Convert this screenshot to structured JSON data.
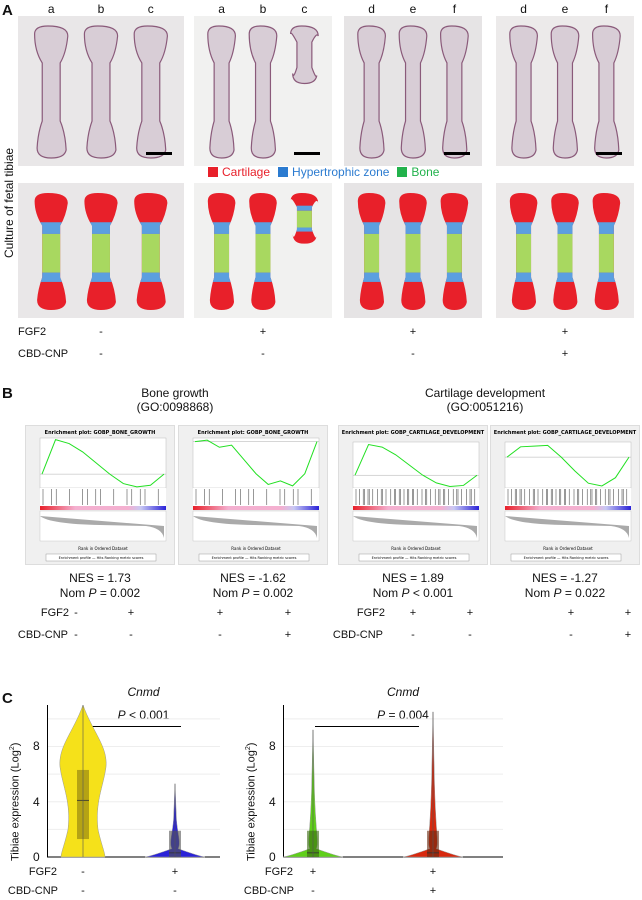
{
  "panel_a": {
    "label": "A",
    "side_label": "Culture of fetal tibiae",
    "groups": [
      {
        "letters": [
          "a",
          "b",
          "c"
        ]
      },
      {
        "letters": [
          "a",
          "b",
          "c"
        ]
      },
      {
        "letters": [
          "d",
          "e",
          "f"
        ]
      },
      {
        "letters": [
          "d",
          "e",
          "f"
        ]
      }
    ],
    "legend": [
      {
        "label": "Cartilage",
        "color": "#e8202a"
      },
      {
        "label": "Hypertrophic zone",
        "color": "#2b7bd0"
      },
      {
        "label": "Bone",
        "color": "#22b24c"
      }
    ],
    "conditions": [
      {
        "name": "FGF2",
        "values": [
          "-",
          "+",
          "+",
          "+"
        ]
      },
      {
        "name": "CBD-CNP",
        "values": [
          "-",
          "-",
          "-",
          "+"
        ]
      }
    ]
  },
  "panel_b": {
    "label": "B",
    "sets": [
      {
        "title": "Bone growth",
        "go": "(GO:0098868)"
      },
      {
        "title": "Cartilage development",
        "go": "(GO:0051216)"
      }
    ],
    "plots": [
      {
        "title": "Enrichment plot: GOBP_BONE_GROWTH",
        "es": [
          0.0,
          0.62,
          0.55,
          0.4,
          0.2,
          0.0,
          -0.17,
          -0.23,
          -0.2,
          0.0
        ],
        "ymin": -0.25,
        "ymax": 0.65,
        "nes": "NES = 1.73",
        "p_label": "Nom ",
        "p_italic": "P",
        "p_value": " = 0.002"
      },
      {
        "title": "Enrichment plot: GOBP_BONE_GROWTH",
        "es": [
          0.0,
          0.02,
          -0.08,
          -0.05,
          -0.25,
          -0.45,
          -0.6,
          -0.55,
          -0.62,
          -0.45,
          0.0
        ],
        "ymin": -0.65,
        "ymax": 0.05,
        "nes": "NES = -1.62",
        "p_label": "Nom ",
        "p_italic": "P",
        "p_value": " = 0.002"
      },
      {
        "title": "Enrichment plot: GOBP_CARTILAGE_DEVELOPMENT",
        "es": [
          0.0,
          0.6,
          0.55,
          0.4,
          0.2,
          0.0,
          -0.15,
          -0.22,
          -0.2,
          0.0
        ],
        "ymin": -0.25,
        "ymax": 0.65,
        "nes": "NES = 1.89",
        "p_label": "Nom ",
        "p_italic": "P",
        "p_value": " < 0.001"
      },
      {
        "title": "Enrichment plot: GOBP_CARTILAGE_DEVELOPMENT",
        "es": [
          0.0,
          0.15,
          0.16,
          0.17,
          0.0,
          -0.2,
          -0.38,
          -0.42,
          -0.3,
          0.0
        ],
        "ymin": -0.45,
        "ymax": 0.22,
        "nes": "NES = -1.27",
        "p_label": "Nom ",
        "p_italic": "P",
        "p_value": " = 0.022"
      }
    ],
    "xlabel": "Rank in Ordered Dataset",
    "legend": "Enrichment profile — Hits    Ranking metric scores",
    "conditions": [
      {
        "name": "FGF2",
        "values": [
          "-",
          "+",
          "+",
          "+",
          "+",
          "+",
          "+",
          "+"
        ]
      },
      {
        "name": "CBD-CNP",
        "values": [
          "-",
          "-",
          "-",
          "+",
          "-",
          "-",
          "-",
          "+"
        ]
      }
    ]
  },
  "panel_c": {
    "label": "C",
    "ylabel": "Tibiae expression (Log",
    "ylabel_sup": "2",
    "ylabel_end": ")",
    "yticks": [
      "0",
      "4",
      "8"
    ],
    "plots": [
      {
        "gene": "Cnmd",
        "p_italic": "P",
        "p_value": " < 0.001",
        "colors": [
          "#f5e11a",
          "#2a22d8"
        ],
        "box_colors": [
          "#8a7a10",
          "#555"
        ],
        "conditions": [
          {
            "name": "FGF2",
            "values": [
              "-",
              "+"
            ]
          },
          {
            "name": "CBD-CNP",
            "values": [
              "-",
              "-"
            ]
          }
        ]
      },
      {
        "gene": "Cnmd",
        "p_italic": "P",
        "p_value": " = 0.004",
        "colors": [
          "#5fcf1a",
          "#d8280e"
        ],
        "box_colors": [
          "#3a6a10",
          "#6a2a10"
        ],
        "conditions": [
          {
            "name": "FGF2",
            "values": [
              "+",
              "+"
            ]
          },
          {
            "name": "CBD-CNP",
            "values": [
              "-",
              "+"
            ]
          }
        ]
      }
    ]
  }
}
